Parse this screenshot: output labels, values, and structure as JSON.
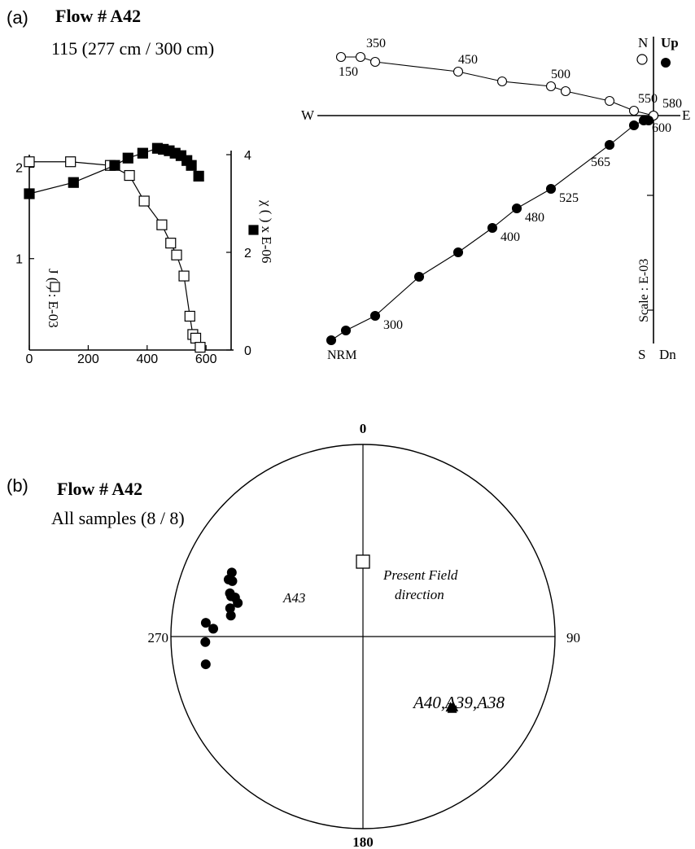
{
  "panel_a": {
    "tag": "(a)",
    "title": "Flow # A42",
    "subtitle": "115 (277 cm / 300 cm)"
  },
  "panel_b": {
    "tag": "(b)",
    "title": "Flow # A42",
    "subtitle": "All samples (8 / 8)"
  },
  "chart_data": [
    {
      "type": "line",
      "name": "thermal demagnetization and susceptibility",
      "x_ticks": [
        "0",
        "200",
        "400",
        "600"
      ],
      "xlim": [
        0,
        700
      ],
      "y_left_ticks": [
        "1",
        "2"
      ],
      "y_left_lim": [
        0,
        2.2
      ],
      "y_left_label": "J ( ) : E-03",
      "y_right_ticks": [
        "0",
        "2",
        "4"
      ],
      "y_right_lim": [
        0,
        4.4
      ],
      "y_right_label": "χ ( ) x E-06",
      "series": [
        {
          "axis": "left",
          "marker": "open-square",
          "x": [
            0,
            140,
            275,
            340,
            390,
            450,
            480,
            500,
            525,
            545,
            555,
            565,
            580
          ],
          "y": [
            2.06,
            2.06,
            2.02,
            1.91,
            1.63,
            1.37,
            1.17,
            1.04,
            0.81,
            0.37,
            0.17,
            0.13,
            0.03
          ]
        },
        {
          "axis": "right",
          "marker": "filled-square",
          "x": [
            0,
            150,
            290,
            335,
            385,
            435,
            455,
            475,
            495,
            515,
            535,
            550,
            575
          ],
          "y": [
            3.2,
            3.43,
            3.78,
            3.93,
            4.03,
            4.13,
            4.11,
            4.08,
            4.03,
            3.98,
            3.88,
            3.78,
            3.56
          ]
        }
      ]
    },
    {
      "type": "scatter",
      "name": "orthogonal vector plot",
      "axis_labels": {
        "north": "N",
        "up": "Up",
        "west": "W",
        "east": "E",
        "south": "S",
        "down": "Dn"
      },
      "scale_label": "Scale : E-03",
      "series": [
        {
          "marker": "open-circle",
          "step_labels": [
            "150",
            "350",
            "450",
            "500",
            "550",
            "580"
          ],
          "x": [
            -0.64,
            -0.6,
            -0.57,
            -0.4,
            -0.31,
            -0.21,
            -0.18,
            -0.09,
            -0.04,
            -0.0,
            0.0
          ],
          "y": [
            0.12,
            0.12,
            0.11,
            0.09,
            0.07,
            0.06,
            0.05,
            0.03,
            0.01,
            0.0,
            0.0
          ]
        },
        {
          "marker": "filled-circle",
          "step_labels": [
            "NRM",
            "300",
            "400",
            "480",
            "525",
            "565",
            "600"
          ],
          "x": [
            -0.66,
            -0.63,
            -0.57,
            -0.48,
            -0.4,
            -0.33,
            -0.28,
            -0.21,
            -0.09,
            -0.04,
            -0.02,
            -0.01
          ],
          "y": [
            -0.46,
            -0.44,
            -0.41,
            -0.33,
            -0.28,
            -0.23,
            -0.19,
            -0.15,
            -0.06,
            -0.02,
            -0.01,
            -0.01
          ]
        }
      ]
    },
    {
      "type": "scatter",
      "name": "equal-area stereonet",
      "direction_labels": [
        "0",
        "90",
        "180",
        "270"
      ],
      "series": [
        {
          "marker": "filled-circle",
          "label": "A43",
          "declination": [
            287,
            285,
            282,
            293,
            293,
            296,
            288,
            287,
            279,
            275,
            273,
            268,
            260
          ],
          "inclination": [
            31,
            33,
            30,
            25,
            27,
            25,
            28,
            29,
            31,
            19,
            23,
            19,
            18
          ]
        },
        {
          "marker": "filled-triangle",
          "label": "A40,A39,A38",
          "declination": [
            128,
            129,
            129
          ],
          "inclination": [
            40,
            40,
            41
          ]
        },
        {
          "marker": "open-square",
          "label": "Present Field\ndirection",
          "declination": [
            0
          ],
          "inclination": [
            58
          ]
        }
      ]
    }
  ]
}
